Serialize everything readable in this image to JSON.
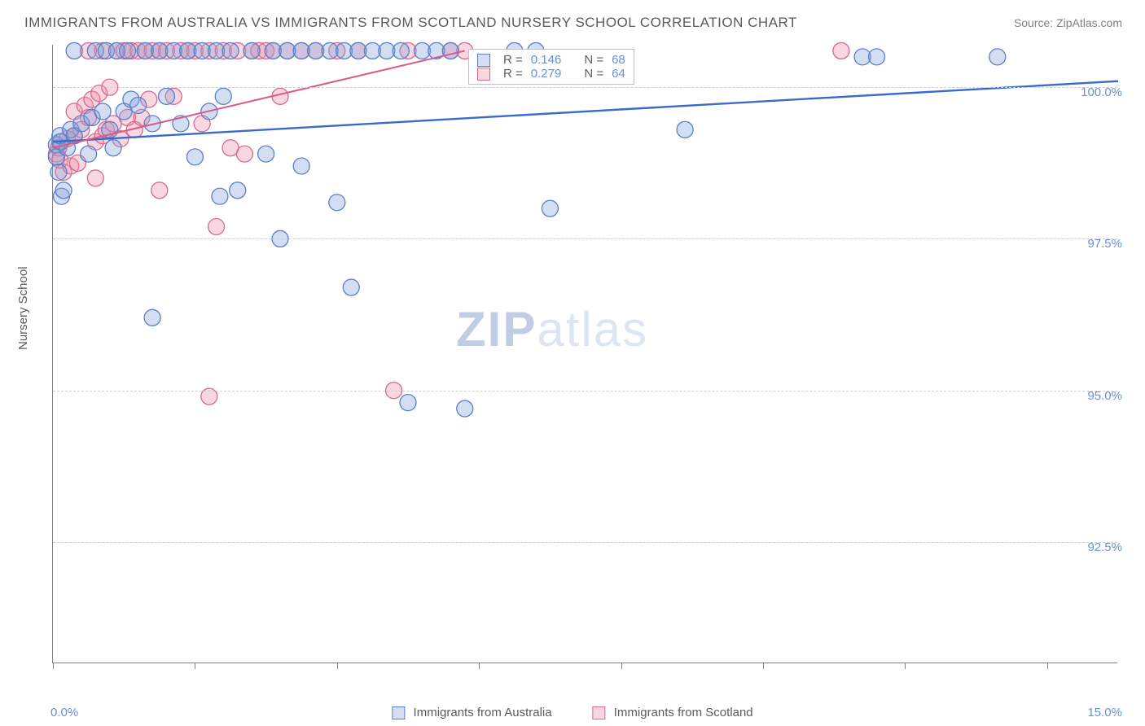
{
  "title": "IMMIGRANTS FROM AUSTRALIA VS IMMIGRANTS FROM SCOTLAND NURSERY SCHOOL CORRELATION CHART",
  "source": "Source: ZipAtlas.com",
  "y_axis_label": "Nursery School",
  "watermark": {
    "bold": "ZIP",
    "light": "atlas"
  },
  "chart": {
    "type": "scatter",
    "xlim": [
      0.0,
      15.0
    ],
    "ylim": [
      90.5,
      100.7
    ],
    "x_ticks": [
      0.0,
      2.0,
      4.0,
      6.0,
      8.0,
      10.0,
      12.0,
      14.0
    ],
    "x_tick_labels": {
      "first": "0.0%",
      "last": "15.0%"
    },
    "y_gridlines": [
      92.5,
      95.0,
      97.5,
      100.0
    ],
    "y_tick_labels": [
      "92.5%",
      "95.0%",
      "97.5%",
      "100.0%"
    ],
    "marker_radius": 10,
    "marker_stroke_width": 1.3,
    "background_color": "#ffffff",
    "grid_color": "#d0d0d0",
    "series": [
      {
        "name": "Immigrants from Australia",
        "fill": "rgba(130,160,220,0.35)",
        "stroke": "#5a80c8",
        "r_value": "0.146",
        "n_value": "68",
        "trend": {
          "x1": 0.0,
          "y1": 99.1,
          "x2": 15.0,
          "y2": 100.1,
          "stroke": "#3a6acc",
          "width": 2.4
        },
        "points": [
          [
            0.05,
            99.05
          ],
          [
            0.05,
            98.85
          ],
          [
            0.08,
            98.6
          ],
          [
            0.1,
            99.1
          ],
          [
            0.1,
            99.2
          ],
          [
            0.12,
            98.2
          ],
          [
            0.15,
            98.3
          ],
          [
            0.2,
            99.0
          ],
          [
            0.25,
            99.3
          ],
          [
            0.3,
            99.2
          ],
          [
            0.3,
            100.6
          ],
          [
            0.4,
            99.4
          ],
          [
            0.5,
            98.9
          ],
          [
            0.55,
            99.5
          ],
          [
            0.6,
            100.6
          ],
          [
            0.7,
            99.6
          ],
          [
            0.75,
            100.6
          ],
          [
            0.8,
            99.3
          ],
          [
            0.85,
            99.0
          ],
          [
            0.9,
            100.6
          ],
          [
            1.0,
            99.6
          ],
          [
            1.05,
            100.6
          ],
          [
            1.1,
            99.8
          ],
          [
            1.2,
            99.7
          ],
          [
            1.3,
            100.6
          ],
          [
            1.4,
            99.4
          ],
          [
            1.4,
            96.2
          ],
          [
            1.5,
            100.6
          ],
          [
            1.6,
            99.85
          ],
          [
            1.7,
            100.6
          ],
          [
            1.8,
            99.4
          ],
          [
            1.9,
            100.6
          ],
          [
            2.0,
            98.85
          ],
          [
            2.1,
            100.6
          ],
          [
            2.2,
            99.6
          ],
          [
            2.3,
            100.6
          ],
          [
            2.35,
            98.2
          ],
          [
            2.4,
            99.85
          ],
          [
            2.5,
            100.6
          ],
          [
            2.6,
            98.3
          ],
          [
            2.8,
            100.6
          ],
          [
            3.0,
            98.9
          ],
          [
            3.1,
            100.6
          ],
          [
            3.2,
            97.5
          ],
          [
            3.3,
            100.6
          ],
          [
            3.5,
            98.7
          ],
          [
            3.5,
            100.6
          ],
          [
            3.7,
            100.6
          ],
          [
            3.9,
            100.6
          ],
          [
            4.0,
            98.1
          ],
          [
            4.1,
            100.6
          ],
          [
            4.2,
            96.7
          ],
          [
            4.3,
            100.6
          ],
          [
            4.5,
            100.6
          ],
          [
            4.7,
            100.6
          ],
          [
            4.9,
            100.6
          ],
          [
            5.0,
            94.8
          ],
          [
            5.2,
            100.6
          ],
          [
            5.4,
            100.6
          ],
          [
            5.6,
            100.6
          ],
          [
            5.8,
            94.7
          ],
          [
            6.5,
            100.6
          ],
          [
            6.8,
            100.6
          ],
          [
            7.0,
            98.0
          ],
          [
            8.9,
            99.3
          ],
          [
            11.4,
            100.5
          ],
          [
            11.6,
            100.5
          ],
          [
            13.3,
            100.5
          ]
        ]
      },
      {
        "name": "Immigrants from Scotland",
        "fill": "rgba(235,140,170,0.35)",
        "stroke": "#d86a90",
        "r_value": "0.279",
        "n_value": "64",
        "trend": {
          "x1": 0.0,
          "y1": 99.0,
          "x2": 5.8,
          "y2": 100.6,
          "stroke": "#d85a85",
          "width": 2.0
        },
        "points": [
          [
            0.05,
            98.9
          ],
          [
            0.08,
            99.0
          ],
          [
            0.1,
            98.8
          ],
          [
            0.12,
            99.1
          ],
          [
            0.15,
            98.6
          ],
          [
            0.2,
            99.15
          ],
          [
            0.25,
            98.7
          ],
          [
            0.3,
            99.2
          ],
          [
            0.3,
            99.6
          ],
          [
            0.35,
            98.75
          ],
          [
            0.4,
            99.3
          ],
          [
            0.45,
            99.7
          ],
          [
            0.5,
            99.5
          ],
          [
            0.5,
            100.6
          ],
          [
            0.55,
            99.8
          ],
          [
            0.6,
            98.5
          ],
          [
            0.6,
            99.1
          ],
          [
            0.65,
            99.9
          ],
          [
            0.7,
            99.2
          ],
          [
            0.7,
            100.6
          ],
          [
            0.75,
            99.3
          ],
          [
            0.8,
            100.0
          ],
          [
            0.85,
            99.4
          ],
          [
            0.9,
            100.6
          ],
          [
            0.95,
            99.15
          ],
          [
            1.0,
            100.6
          ],
          [
            1.05,
            99.5
          ],
          [
            1.1,
            100.6
          ],
          [
            1.15,
            99.3
          ],
          [
            1.2,
            100.6
          ],
          [
            1.25,
            99.5
          ],
          [
            1.3,
            100.6
          ],
          [
            1.35,
            99.8
          ],
          [
            1.4,
            100.6
          ],
          [
            1.5,
            98.3
          ],
          [
            1.5,
            100.6
          ],
          [
            1.6,
            100.6
          ],
          [
            1.7,
            99.85
          ],
          [
            1.8,
            100.6
          ],
          [
            1.9,
            100.6
          ],
          [
            2.0,
            100.6
          ],
          [
            2.1,
            99.4
          ],
          [
            2.2,
            94.9
          ],
          [
            2.2,
            100.6
          ],
          [
            2.3,
            97.7
          ],
          [
            2.4,
            100.6
          ],
          [
            2.5,
            99.0
          ],
          [
            2.6,
            100.6
          ],
          [
            2.7,
            98.9
          ],
          [
            2.8,
            100.6
          ],
          [
            2.9,
            100.6
          ],
          [
            3.0,
            100.6
          ],
          [
            3.1,
            100.6
          ],
          [
            3.2,
            99.85
          ],
          [
            3.3,
            100.6
          ],
          [
            3.5,
            100.6
          ],
          [
            3.7,
            100.6
          ],
          [
            4.0,
            100.6
          ],
          [
            4.3,
            100.6
          ],
          [
            4.8,
            95.0
          ],
          [
            5.0,
            100.6
          ],
          [
            5.6,
            100.6
          ],
          [
            5.8,
            100.6
          ],
          [
            11.1,
            100.6
          ]
        ]
      }
    ]
  },
  "legend_top": {
    "r_label": "R =",
    "n_label": "N ="
  },
  "legend_bottom": {
    "series1": "Immigrants from Australia",
    "series2": "Immigrants from Scotland"
  }
}
